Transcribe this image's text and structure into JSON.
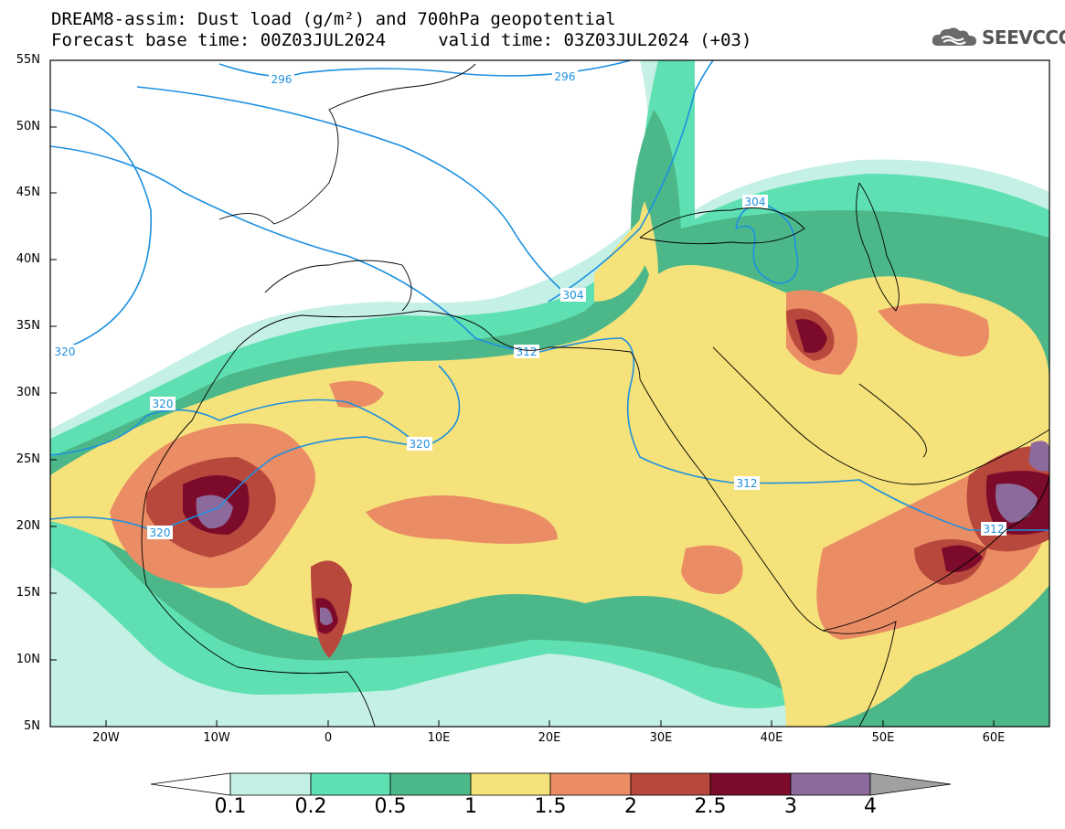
{
  "title_line1": "DREAM8-assim: Dust load (g/m²) and 700hPa geopotential",
  "title_line2": "Forecast base time: 00Z03JUL2024     valid time: 03Z03JUL2024 (+03)",
  "logo_text": "SEEVCCC",
  "map": {
    "lon_range": [
      -25,
      65
    ],
    "lat_range": [
      5,
      55
    ],
    "lat_labels": [
      "55N",
      "50N",
      "45N",
      "40N",
      "35N",
      "30N",
      "25N",
      "20N",
      "15N",
      "10N",
      "5N"
    ],
    "lon_labels": [
      "20W",
      "10W",
      "0",
      "10E",
      "20E",
      "30E",
      "40E",
      "50E",
      "60E"
    ],
    "contour_color": "#1e90e0",
    "contour_labels": [
      "296",
      "296",
      "304",
      "304",
      "312",
      "312",
      "312",
      "320",
      "320",
      "320",
      "320"
    ]
  },
  "colorbar": {
    "levels": [
      "0.1",
      "0.2",
      "0.5",
      "1",
      "1.5",
      "2",
      "2.5",
      "3",
      "4"
    ],
    "colors": [
      "#c4f0e6",
      "#5fe0b2",
      "#4cb88a",
      "#f5e27a",
      "#ea8c64",
      "#b8483c",
      "#7c0a2a",
      "#8c6a9c",
      "#a0a0a0"
    ],
    "under_color": "#ffffff"
  }
}
